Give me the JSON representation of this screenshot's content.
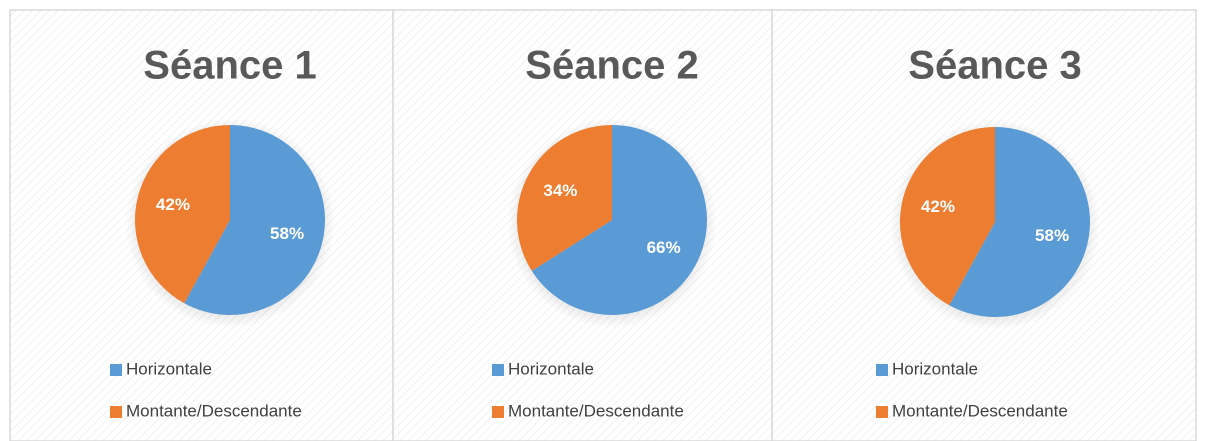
{
  "chart_data": [
    {
      "type": "pie",
      "title": "Séance 1",
      "categories": [
        "Horizontale",
        "Montante/Descendante"
      ],
      "values": [
        58,
        42
      ],
      "value_labels": [
        "58%",
        "42%"
      ],
      "colors": [
        "#5b9bd5",
        "#ed7d31"
      ]
    },
    {
      "type": "pie",
      "title": "Séance 2",
      "categories": [
        "Horizontale",
        "Montante/Descendante"
      ],
      "values": [
        66,
        34
      ],
      "value_labels": [
        "66%",
        "34%"
      ],
      "colors": [
        "#5b9bd5",
        "#ed7d31"
      ]
    },
    {
      "type": "pie",
      "title": "Séance 3",
      "categories": [
        "Horizontale",
        "Montante/Descendante"
      ],
      "values": [
        58,
        42
      ],
      "value_labels": [
        "58%",
        "42%"
      ],
      "colors": [
        "#5b9bd5",
        "#ed7d31"
      ]
    }
  ]
}
